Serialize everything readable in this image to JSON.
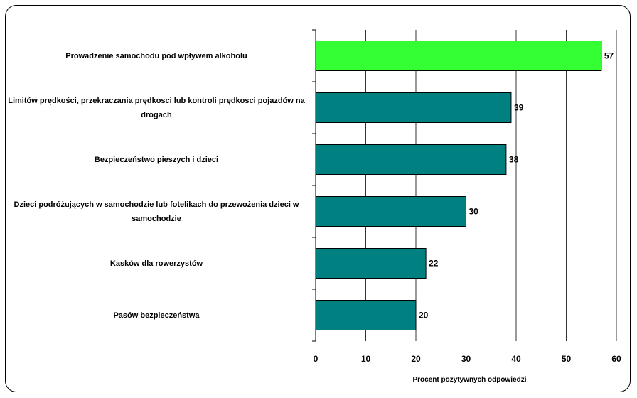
{
  "chart_data": {
    "type": "bar",
    "orientation": "horizontal",
    "categories": [
      "Prowadzenie samochodu pod wpływem alkoholu",
      "Limitów prędkości, przekraczania prędkosci lub kontroli prędkosci pojazdów na drogach",
      "Bezpieczeństwo pieszych i dzieci",
      "Dzieci podróżujących w samochodzie lub fotelikach do przewożenia dzieci w samochodzie",
      "Kasków dla rowerzystów",
      "Pasów bezpieczeństwa"
    ],
    "values": [
      57,
      39,
      38,
      30,
      22,
      20
    ],
    "data_labels": [
      "57",
      "39",
      "38",
      "30",
      "22",
      "20"
    ],
    "bar_colors": [
      "#33ff33",
      "#008080",
      "#008080",
      "#008080",
      "#008080",
      "#008080"
    ],
    "xlabel": "Procent pozytywnych odpowiedzi",
    "ylabel": "",
    "xlim": [
      0,
      60
    ],
    "xticks": [
      "0",
      "10",
      "20",
      "30",
      "40",
      "50",
      "60"
    ],
    "grid": "vertical"
  }
}
